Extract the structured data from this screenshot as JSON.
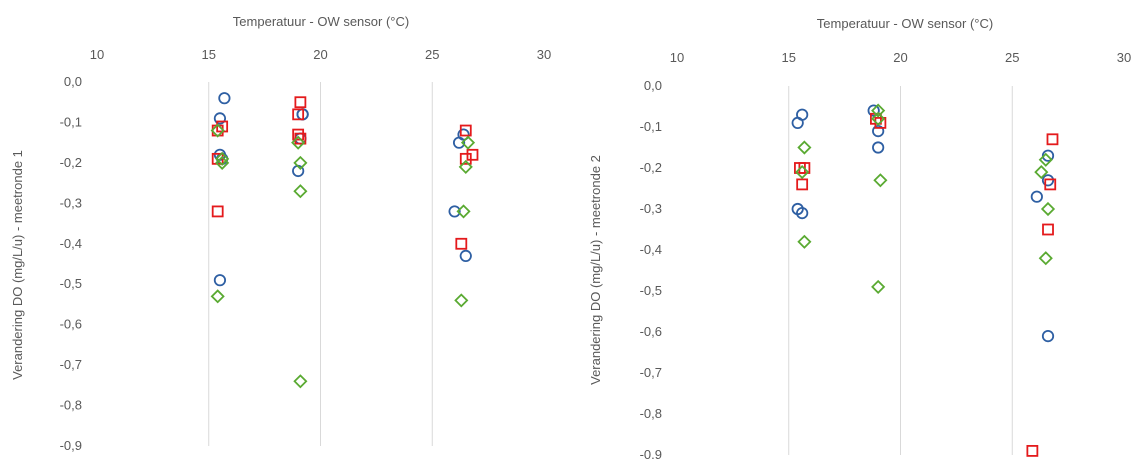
{
  "chart_data": [
    {
      "type": "scatter",
      "title": "",
      "xlabel": "Temperatuur - OW sensor (°C)",
      "ylabel": "Verandering DO (mg/L/u) - meetronde 1",
      "xlim": [
        10,
        30
      ],
      "ylim": [
        -0.9,
        0.0
      ],
      "x_ticks": [
        "10",
        "15",
        "20",
        "25",
        "30"
      ],
      "y_ticks": [
        "0,0",
        "-0,1",
        "-0,2",
        "-0,3",
        "-0,4",
        "-0,5",
        "-0,6",
        "-0,7",
        "-0,8",
        "-0,9"
      ],
      "x_axis_position": "top",
      "grid": "vertical",
      "legend": "none",
      "series": [
        {
          "marker": "circle",
          "color": "#2e5fa3",
          "points": [
            [
              15.7,
              -0.04
            ],
            [
              15.5,
              -0.09
            ],
            [
              15.5,
              -0.18
            ],
            [
              15.6,
              -0.19
            ],
            [
              15.5,
              -0.49
            ],
            [
              19.1,
              -0.14
            ],
            [
              19.2,
              -0.08
            ],
            [
              19.2,
              -0.08
            ],
            [
              19.0,
              -0.22
            ],
            [
              26.4,
              -0.13
            ],
            [
              26.2,
              -0.15
            ],
            [
              26.0,
              -0.32
            ],
            [
              26.5,
              -0.43
            ]
          ]
        },
        {
          "marker": "square",
          "color": "#e41a1c",
          "points": [
            [
              15.6,
              -0.11
            ],
            [
              15.4,
              -0.12
            ],
            [
              15.4,
              -0.19
            ],
            [
              15.4,
              -0.32
            ],
            [
              19.1,
              -0.05
            ],
            [
              19.0,
              -0.08
            ],
            [
              19.0,
              -0.13
            ],
            [
              19.1,
              -0.14
            ],
            [
              26.5,
              -0.12
            ],
            [
              26.8,
              -0.18
            ],
            [
              26.5,
              -0.19
            ],
            [
              26.3,
              -0.4
            ]
          ]
        },
        {
          "marker": "diamond",
          "color": "#5aaa32",
          "points": [
            [
              15.4,
              -0.12
            ],
            [
              15.6,
              -0.19
            ],
            [
              15.6,
              -0.2
            ],
            [
              15.4,
              -0.53
            ],
            [
              19.0,
              -0.15
            ],
            [
              19.1,
              -0.2
            ],
            [
              19.1,
              -0.27
            ],
            [
              19.1,
              -0.74
            ],
            [
              26.6,
              -0.15
            ],
            [
              26.5,
              -0.21
            ],
            [
              26.4,
              -0.32
            ],
            [
              26.3,
              -0.54
            ]
          ]
        }
      ]
    },
    {
      "type": "scatter",
      "title": "",
      "xlabel": "Temperatuur - OW sensor (°C)",
      "ylabel": "Verandering DO (mg/L/u) - meetronde 2",
      "xlim": [
        10,
        30
      ],
      "ylim": [
        -0.9,
        0.0
      ],
      "x_ticks": [
        "10",
        "15",
        "20",
        "25",
        "30"
      ],
      "y_ticks": [
        "0,0",
        "-0,1",
        "-0,2",
        "-0,3",
        "-0,4",
        "-0,5",
        "-0,6",
        "-0,7",
        "-0,8",
        "-0.9"
      ],
      "x_axis_position": "top",
      "grid": "vertical",
      "legend": "none",
      "series": [
        {
          "marker": "circle",
          "color": "#2e5fa3",
          "points": [
            [
              15.6,
              -0.07
            ],
            [
              15.4,
              -0.09
            ],
            [
              15.4,
              -0.3
            ],
            [
              15.6,
              -0.31
            ],
            [
              18.8,
              -0.06
            ],
            [
              19.0,
              -0.11
            ],
            [
              19.0,
              -0.15
            ],
            [
              26.6,
              -0.17
            ],
            [
              26.6,
              -0.23
            ],
            [
              26.1,
              -0.27
            ],
            [
              26.6,
              -0.61
            ]
          ]
        },
        {
          "marker": "square",
          "color": "#e41a1c",
          "points": [
            [
              15.7,
              -0.2
            ],
            [
              15.5,
              -0.2
            ],
            [
              15.6,
              -0.24
            ],
            [
              18.9,
              -0.08
            ],
            [
              19.1,
              -0.09
            ],
            [
              26.8,
              -0.13
            ],
            [
              26.7,
              -0.24
            ],
            [
              26.6,
              -0.35
            ],
            [
              25.9,
              -0.89
            ]
          ]
        },
        {
          "marker": "diamond",
          "color": "#5aaa32",
          "points": [
            [
              15.7,
              -0.15
            ],
            [
              15.6,
              -0.21
            ],
            [
              15.7,
              -0.38
            ],
            [
              19.0,
              -0.06
            ],
            [
              19.0,
              -0.08
            ],
            [
              19.1,
              -0.23
            ],
            [
              19.0,
              -0.49
            ],
            [
              26.5,
              -0.18
            ],
            [
              26.3,
              -0.21
            ],
            [
              26.6,
              -0.3
            ],
            [
              26.5,
              -0.42
            ]
          ]
        }
      ]
    }
  ]
}
